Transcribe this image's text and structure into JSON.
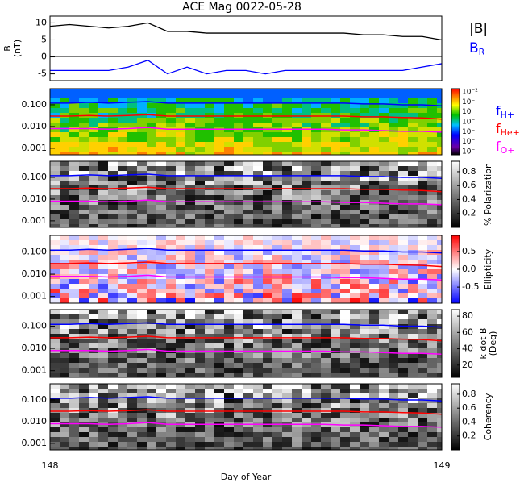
{
  "chart_data": [
    {
      "type": "line",
      "title": "ACE Mag 0022-05-28",
      "ylabel_lines": [
        "B",
        "(nT)"
      ],
      "xlim": [
        148,
        149
      ],
      "ylim": [
        -7,
        12
      ],
      "yticks": [
        -5,
        0,
        5,
        10
      ],
      "x": [
        148,
        148.05,
        148.1,
        148.15,
        148.2,
        148.25,
        148.3,
        148.35,
        148.4,
        148.45,
        148.5,
        148.55,
        148.6,
        148.65,
        148.7,
        148.75,
        148.8,
        148.85,
        148.9,
        148.95,
        149
      ],
      "series": [
        {
          "name": "|B|",
          "color": "#000000",
          "values": [
            9,
            9.5,
            9,
            8.5,
            9,
            10,
            7.5,
            7.5,
            7,
            7,
            7,
            7,
            7,
            7,
            7,
            7,
            6.5,
            6.5,
            6,
            6,
            5
          ]
        },
        {
          "name": "B",
          "name_sub": "R",
          "color": "#0000ff",
          "values": [
            -4,
            -4,
            -4,
            -4,
            -3,
            -1,
            -5,
            -3,
            -5,
            -4,
            -4,
            -5,
            -4,
            -4,
            -4,
            -4,
            -4,
            -4,
            -4,
            -3,
            -2
          ]
        }
      ]
    },
    {
      "type": "spectrogram",
      "colormap": "rainbow",
      "ylog": true,
      "ylim": [
        0.0005,
        0.55
      ],
      "yticks": [
        {
          "value": 0.1,
          "label": "0.100"
        },
        {
          "value": 0.01,
          "label": "0.010"
        },
        {
          "value": 0.001,
          "label": "0.001"
        }
      ],
      "cbar_labels": [
        "10⁻²",
        "10⁻",
        "10⁻",
        "10⁻",
        "10⁻",
        "10⁻",
        "10⁻"
      ],
      "x": [
        148,
        148.05,
        148.1,
        148.15,
        148.2,
        148.25,
        148.3,
        148.35,
        148.4,
        148.45,
        148.5,
        148.55,
        148.6,
        148.65,
        148.7,
        148.75,
        148.8,
        148.85,
        148.9,
        148.95,
        149
      ],
      "series": [
        {
          "name": "f",
          "name_sub": "H+",
          "color": "#0000ff",
          "values": [
            0.12,
            0.12,
            0.13,
            0.12,
            0.13,
            0.14,
            0.12,
            0.12,
            0.12,
            0.12,
            0.12,
            0.12,
            0.12,
            0.12,
            0.12,
            0.12,
            0.11,
            0.11,
            0.1,
            0.1,
            0.09
          ]
        },
        {
          "name": "f",
          "name_sub": "He+",
          "color": "#ff0000",
          "values": [
            0.03,
            0.03,
            0.032,
            0.03,
            0.032,
            0.035,
            0.03,
            0.03,
            0.03,
            0.03,
            0.03,
            0.03,
            0.03,
            0.03,
            0.03,
            0.03,
            0.028,
            0.028,
            0.026,
            0.025,
            0.022
          ]
        },
        {
          "name": "f",
          "name_sub": "O+",
          "color": "#ff00ff",
          "values": [
            0.008,
            0.008,
            0.008,
            0.0075,
            0.008,
            0.009,
            0.0075,
            0.0075,
            0.0075,
            0.0075,
            0.0075,
            0.0075,
            0.0075,
            0.0075,
            0.0075,
            0.007,
            0.007,
            0.0065,
            0.006,
            0.006,
            0.0055
          ]
        }
      ]
    },
    {
      "type": "spectrogram",
      "colormap": "gray",
      "ylog": true,
      "ylim": [
        0.0005,
        0.55
      ],
      "yticks": [
        {
          "value": 0.1,
          "label": "0.100"
        },
        {
          "value": 0.01,
          "label": "0.010"
        },
        {
          "value": 0.001,
          "label": "0.001"
        }
      ],
      "clim": [
        0,
        0.95
      ],
      "cticks": [
        0.2,
        0.4,
        0.6,
        0.8
      ],
      "clabel": "% Polarization"
    },
    {
      "type": "spectrogram",
      "colormap": "bwr",
      "ylog": true,
      "ylim": [
        0.0005,
        0.55
      ],
      "yticks": [
        {
          "value": 0.1,
          "label": "0.100"
        },
        {
          "value": 0.01,
          "label": "0.010"
        },
        {
          "value": 0.001,
          "label": "0.001"
        }
      ],
      "clim": [
        -0.95,
        0.95
      ],
      "cticks": [
        -0.5,
        {
          "value": 0,
          "label": "0.0"
        },
        0.5
      ],
      "clabel": "Ellipticity"
    },
    {
      "type": "spectrogram",
      "colormap": "gray",
      "ylog": true,
      "ylim": [
        0.0005,
        0.55
      ],
      "yticks": [
        {
          "value": 0.1,
          "label": "0.100"
        },
        {
          "value": 0.01,
          "label": "0.010"
        },
        {
          "value": 0.001,
          "label": "0.001"
        }
      ],
      "clim": [
        5,
        88
      ],
      "cticks": [
        20,
        40,
        60,
        80
      ],
      "clabel_lines": [
        "k dot B",
        "(Deg)"
      ]
    },
    {
      "type": "spectrogram",
      "colormap": "gray",
      "ylog": true,
      "ylim": [
        0.0005,
        0.55
      ],
      "yticks": [
        {
          "value": 0.1,
          "label": "0.100"
        },
        {
          "value": 0.01,
          "label": "0.010"
        },
        {
          "value": 0.001,
          "label": "0.001"
        }
      ],
      "clim": [
        0,
        0.95
      ],
      "cticks": [
        0.2,
        0.4,
        0.6,
        0.8
      ],
      "clabel": "Coherency",
      "xlim": [
        148,
        149
      ],
      "xticks": [
        148,
        149
      ],
      "xlabel": "Day of Year"
    }
  ]
}
